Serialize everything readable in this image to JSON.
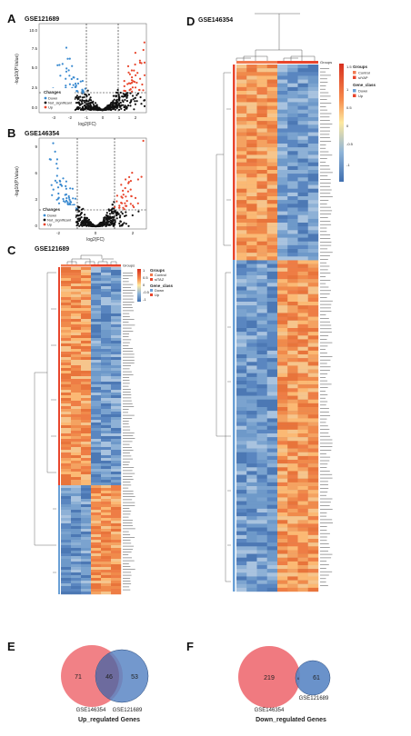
{
  "panels": {
    "A": {
      "letter": "A",
      "dataset": "GSE121689",
      "xlabel": "log2(FC)",
      "ylabel": "-log10(P.Value)",
      "xticks": [
        "-3",
        "-2",
        "-1",
        "0",
        "1",
        "2"
      ],
      "yticks": [
        "0.0",
        "2.5",
        "5.0",
        "7.5",
        "10.0"
      ],
      "legend_title": "Changes",
      "legend": [
        "Down",
        "Not_significant",
        "Up"
      ]
    },
    "B": {
      "letter": "B",
      "dataset": "GSE146354",
      "xlabel": "log2(FC)",
      "ylabel": "-log10(P.Value)",
      "xticks": [
        "-2",
        "0",
        "2"
      ],
      "yticks": [
        "0",
        "3",
        "6",
        "9"
      ],
      "legend_title": "Changes",
      "legend": [
        "Down",
        "Not_significant",
        "Up"
      ]
    },
    "C": {
      "letter": "C",
      "dataset": "GSE121689",
      "group_legend": "Groups",
      "groups": [
        "Control",
        "siTAZ"
      ],
      "class_legend": "Gene_class",
      "classes": [
        "Down",
        "Up"
      ],
      "scale": [
        "1",
        "0.5",
        "0",
        "-0.5",
        "-1"
      ],
      "col_header": "Groups"
    },
    "D": {
      "letter": "D",
      "dataset": "GSE146354",
      "group_legend": "Groups",
      "groups": [
        "Control",
        "siYAP"
      ],
      "class_legend": "Gene_class",
      "classes": [
        "Down",
        "Up"
      ],
      "scale": [
        "1.5",
        "1",
        "0.5",
        "0",
        "-0.5",
        "-1"
      ],
      "col_header": "Groups"
    },
    "E": {
      "letter": "E",
      "left_count": "71",
      "overlap_count": "46",
      "right_count": "53",
      "left_label": "GSE146354",
      "right_label": "GSE121689",
      "title": "Up_regulated Genes"
    },
    "F": {
      "letter": "F",
      "left_count": "219",
      "overlap_count": "6",
      "right_count": "61",
      "left_label": "GSE146354",
      "right_label": "GSE121689",
      "title": "Down_regulated Genes"
    }
  },
  "colors": {
    "down": "#3a8ad0",
    "up": "#e8452c",
    "ns": "#111111",
    "high": "#e34a2a",
    "mid": "#fde9a0",
    "low": "#4a7fbd",
    "venn_left": "#f07a80",
    "venn_right": "#5a86c4",
    "venn_overlap": "#6a5a8a"
  }
}
